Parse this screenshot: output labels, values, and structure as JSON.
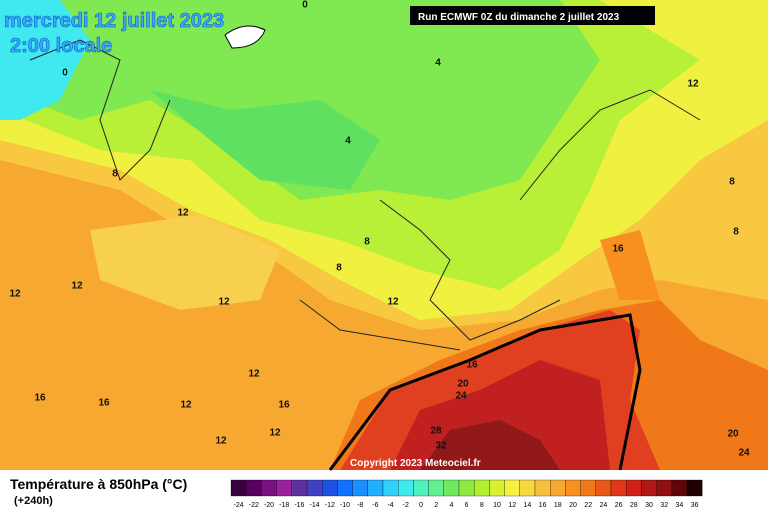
{
  "header": {
    "title": "mercredi 12 juillet 2023",
    "subtitle": "2:00 locale",
    "run": "Run ECMWF 0Z du dimanche 2 juillet 2023"
  },
  "map": {
    "contour_labels": [
      0,
      0,
      4,
      12,
      4,
      8,
      12,
      8,
      8,
      16,
      8,
      8,
      12,
      12,
      12,
      12,
      16,
      20,
      24,
      12,
      16,
      16,
      12,
      16,
      12,
      12,
      28,
      32,
      20,
      24
    ],
    "copyright": "Copyright 2023 Meteociel.fr"
  },
  "footer": {
    "title": "Température à 850hPa (°C)",
    "lead": "(+240h)"
  },
  "legend": {
    "labels": [
      -24,
      -22,
      -20,
      -18,
      -16,
      -14,
      -12,
      -10,
      -8,
      -6,
      -4,
      -2,
      0,
      2,
      4,
      6,
      8,
      10,
      12,
      14,
      16,
      18,
      20,
      22,
      24,
      26,
      28,
      30,
      32,
      34,
      36
    ],
    "colors": [
      "#3a0040",
      "#5a0060",
      "#7a1080",
      "#9a20a0",
      "#6030a0",
      "#4040c0",
      "#2050e0",
      "#1070ff",
      "#1890ff",
      "#20b0ff",
      "#30d0ff",
      "#40e8f0",
      "#50f0c0",
      "#60f090",
      "#70e860",
      "#90e840",
      "#b0f030",
      "#d8f030",
      "#f8f040",
      "#f8d840",
      "#f8c040",
      "#f8a830",
      "#f89020",
      "#f07818",
      "#e85818",
      "#e03818",
      "#d02018",
      "#b01818",
      "#901010",
      "#600808",
      "#200000"
    ]
  }
}
